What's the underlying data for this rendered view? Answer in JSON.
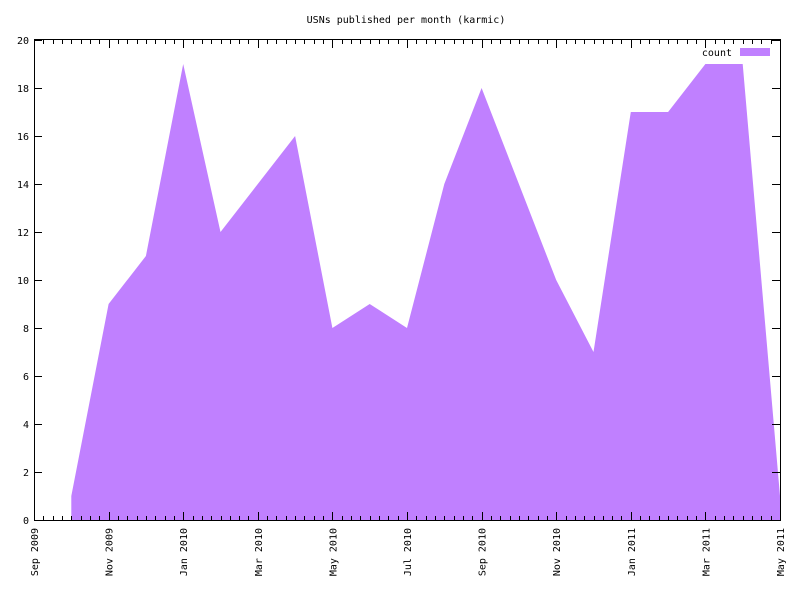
{
  "chart_data": {
    "type": "area",
    "title": "USNs published per month (karmic)",
    "xlabel": "",
    "ylabel": "",
    "x": [
      "2009-10",
      "2009-11",
      "2009-12",
      "2010-01",
      "2010-02",
      "2010-03",
      "2010-04",
      "2010-05",
      "2010-06",
      "2010-07",
      "2010-08",
      "2010-09",
      "2010-10",
      "2010-11",
      "2010-12",
      "2011-01",
      "2011-02",
      "2011-03",
      "2011-04",
      "2011-05"
    ],
    "series": [
      {
        "name": "count",
        "values": [
          1,
          9,
          11,
          19,
          12,
          14,
          16,
          8,
          9,
          8,
          14,
          18,
          14,
          10,
          7,
          17,
          17,
          19,
          19,
          1
        ]
      }
    ],
    "xlim": [
      "2009-09",
      "2011-05"
    ],
    "ylim": [
      0,
      20
    ],
    "yticks": [
      0,
      2,
      4,
      6,
      8,
      10,
      12,
      14,
      16,
      18,
      20
    ],
    "xticks": [
      {
        "date": "2009-09",
        "label": "Sep 2009"
      },
      {
        "date": "2009-11",
        "label": "Nov 2009"
      },
      {
        "date": "2010-01",
        "label": "Jan 2010"
      },
      {
        "date": "2010-03",
        "label": "Mar 2010"
      },
      {
        "date": "2010-05",
        "label": "May 2010"
      },
      {
        "date": "2010-07",
        "label": "Jul 2010"
      },
      {
        "date": "2010-09",
        "label": "Sep 2010"
      },
      {
        "date": "2010-11",
        "label": "Nov 2010"
      },
      {
        "date": "2011-01",
        "label": "Jan 2011"
      },
      {
        "date": "2011-03",
        "label": "Mar 2011"
      },
      {
        "date": "2011-05",
        "label": "May 2011"
      }
    ],
    "legend": "top-right",
    "grid": false,
    "fill_color": "#c080ff"
  }
}
